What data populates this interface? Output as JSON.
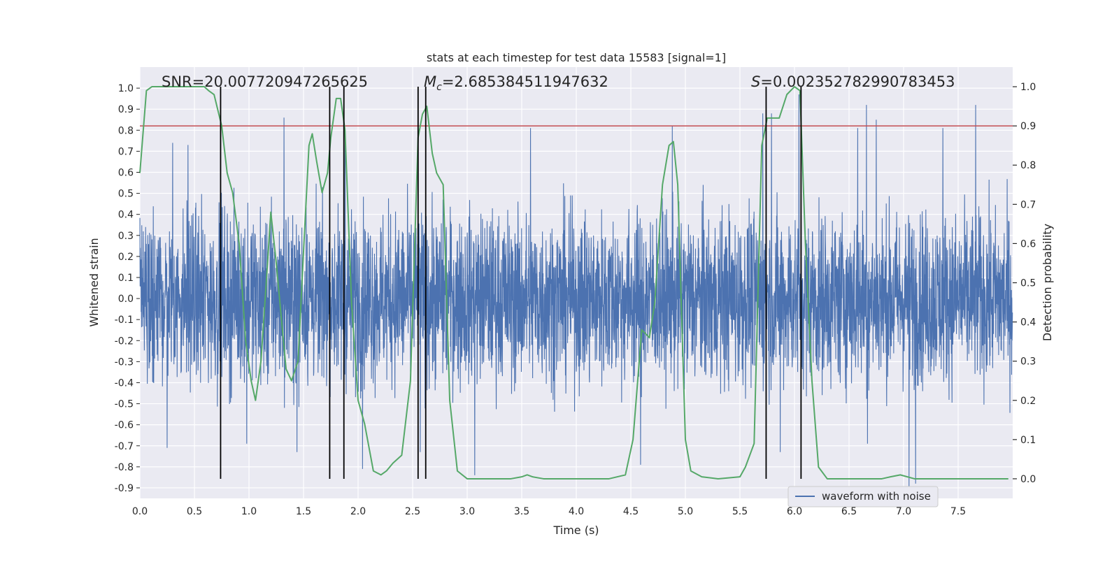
{
  "chart_data": {
    "type": "line",
    "title": "stats at each timestep for test data 15583 [signal=1]",
    "xlabel": "Time (s)",
    "ylabel_left": "Whitened strain",
    "ylabel_right": "Detection probability",
    "xlim": [
      0.0,
      8.0
    ],
    "ylim_left": [
      -0.95,
      1.1
    ],
    "ylim_right": [
      -0.05,
      1.05
    ],
    "x_ticks": [
      "0.0",
      "0.5",
      "1.0",
      "1.5",
      "2.0",
      "2.5",
      "3.0",
      "3.5",
      "4.0",
      "4.5",
      "5.0",
      "5.5",
      "6.0",
      "6.5",
      "7.0",
      "7.5"
    ],
    "y_ticks_left": [
      "1.0",
      "0.9",
      "0.8",
      "0.7",
      "0.6",
      "0.5",
      "0.4",
      "0.3",
      "0.2",
      "0.1",
      "0.0",
      "-0.1",
      "-0.2",
      "-0.3",
      "-0.4",
      "-0.5",
      "-0.6",
      "-0.7",
      "-0.8",
      "-0.9"
    ],
    "y_ticks_right": [
      "1.0",
      "0.9",
      "0.8",
      "0.7",
      "0.6",
      "0.5",
      "0.4",
      "0.3",
      "0.2",
      "0.1",
      "0.0"
    ],
    "grid": true,
    "background": "#eaeaf2",
    "annotations": {
      "snr": "SNR=20.007720947265625",
      "mc_symbol": "M",
      "mc_sub": "c",
      "mc_value": "=2.685384511947632",
      "s_symbol": "S",
      "s_value": "=0.002352782990783453"
    },
    "legend": {
      "label": "waveform with noise",
      "placement": "lower right"
    },
    "series": [
      {
        "name": "waveform with noise",
        "color": "#4c72b0",
        "style": "dense noise trace",
        "envelope_typical": [
          -0.45,
          0.45
        ],
        "peaks": [
          {
            "x": 0.3,
            "y": 0.74
          },
          {
            "x": 0.44,
            "y": 0.73
          },
          {
            "x": 1.32,
            "y": 0.86
          },
          {
            "x": 1.88,
            "y": 0.8
          },
          {
            "x": 3.58,
            "y": 0.81
          },
          {
            "x": 4.88,
            "y": 0.82
          },
          {
            "x": 5.71,
            "y": 0.88
          },
          {
            "x": 5.79,
            "y": 0.88
          },
          {
            "x": 6.04,
            "y": 0.97
          },
          {
            "x": 6.58,
            "y": 0.81
          },
          {
            "x": 6.66,
            "y": 0.92
          },
          {
            "x": 6.75,
            "y": 0.85
          },
          {
            "x": 7.36,
            "y": 0.81
          },
          {
            "x": 7.66,
            "y": 0.92
          }
        ],
        "troughs": [
          {
            "x": 0.25,
            "y": -0.71
          },
          {
            "x": 0.98,
            "y": -0.69
          },
          {
            "x": 1.44,
            "y": -0.73
          },
          {
            "x": 2.04,
            "y": -0.81
          },
          {
            "x": 2.57,
            "y": -0.73
          },
          {
            "x": 3.07,
            "y": -0.84
          },
          {
            "x": 4.59,
            "y": -0.79
          },
          {
            "x": 5.87,
            "y": -0.73
          },
          {
            "x": 6.67,
            "y": -0.69
          },
          {
            "x": 7.05,
            "y": -0.96
          },
          {
            "x": 7.11,
            "y": -0.88
          }
        ]
      },
      {
        "name": "",
        "axis": "right",
        "color": "#55a868",
        "x": [
          0.0,
          0.06,
          0.11,
          0.17,
          0.25,
          0.34,
          0.42,
          0.5,
          0.59,
          0.63,
          0.68,
          0.75,
          0.8,
          0.85,
          0.91,
          0.97,
          1.02,
          1.06,
          1.11,
          1.17,
          1.2,
          1.25,
          1.34,
          1.39,
          1.45,
          1.5,
          1.55,
          1.58,
          1.62,
          1.67,
          1.72,
          1.75,
          1.8,
          1.84,
          1.88,
          1.94,
          2.0,
          2.06,
          2.14,
          2.21,
          2.26,
          2.32,
          2.4,
          2.48,
          2.55,
          2.59,
          2.63,
          2.68,
          2.72,
          2.78,
          2.84,
          2.91,
          3.0,
          3.2,
          3.4,
          3.5,
          3.55,
          3.6,
          3.7,
          3.9,
          4.1,
          4.3,
          4.45,
          4.52,
          4.6,
          4.67,
          4.72,
          4.79,
          4.85,
          4.89,
          4.93,
          5.0,
          5.05,
          5.15,
          5.3,
          5.5,
          5.55,
          5.63,
          5.7,
          5.75,
          5.8,
          5.86,
          5.93,
          6.0,
          6.05,
          6.1,
          6.16,
          6.22,
          6.3,
          6.4,
          6.8,
          6.88,
          6.97,
          7.1,
          7.5,
          7.96
        ],
        "values": [
          0.78,
          0.99,
          1.0,
          1.0,
          1.0,
          1.0,
          1.0,
          1.0,
          1.0,
          0.99,
          0.98,
          0.9,
          0.78,
          0.73,
          0.6,
          0.35,
          0.25,
          0.2,
          0.3,
          0.55,
          0.68,
          0.55,
          0.28,
          0.25,
          0.3,
          0.58,
          0.85,
          0.88,
          0.81,
          0.73,
          0.78,
          0.87,
          0.97,
          0.97,
          0.89,
          0.45,
          0.2,
          0.14,
          0.02,
          0.01,
          0.02,
          0.04,
          0.06,
          0.25,
          0.87,
          0.93,
          0.95,
          0.83,
          0.78,
          0.75,
          0.2,
          0.02,
          0.0,
          0.0,
          0.0,
          0.005,
          0.01,
          0.005,
          0.0,
          0.0,
          0.0,
          0.0,
          0.01,
          0.1,
          0.38,
          0.36,
          0.45,
          0.75,
          0.85,
          0.86,
          0.75,
          0.1,
          0.02,
          0.005,
          0.0,
          0.005,
          0.03,
          0.09,
          0.85,
          0.92,
          0.92,
          0.92,
          0.98,
          1.0,
          0.99,
          0.6,
          0.25,
          0.03,
          0.0,
          0.0,
          0.0,
          0.005,
          0.01,
          0.0,
          0.0,
          0.0
        ]
      }
    ],
    "threshold": {
      "axis": "right",
      "value": 0.9,
      "color": "#c44e52"
    },
    "event_lines": {
      "color": "#000000",
      "x": [
        0.74,
        1.74,
        1.87,
        2.55,
        2.62,
        5.74,
        6.06
      ]
    }
  }
}
